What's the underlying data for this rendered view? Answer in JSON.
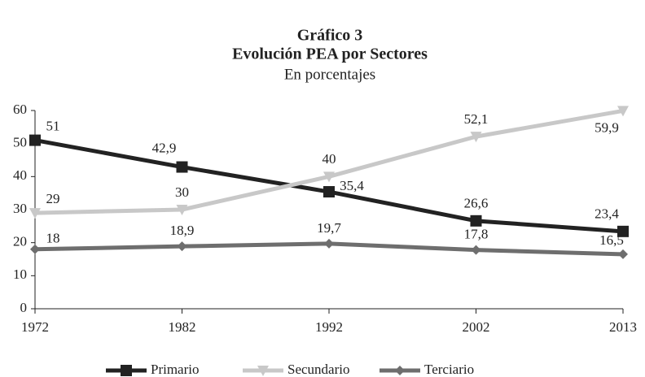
{
  "chart_data": {
    "type": "line",
    "title": "Gráfico 3",
    "subtitle": "Evolución PEA por Sectores",
    "y_label": "En porcentajes",
    "categories": [
      "1972",
      "1982",
      "1992",
      "2002",
      "2013"
    ],
    "series": [
      {
        "name": "Primario",
        "color": "#222222",
        "marker": "square",
        "values": [
          51,
          42.9,
          35.4,
          26.6,
          23.4
        ],
        "value_labels": [
          "51",
          "42,9",
          "35,4",
          "26,6",
          "23,4"
        ]
      },
      {
        "name": "Secundario",
        "color": "#c8c8c8",
        "marker": "triangle-down",
        "values": [
          29,
          30,
          40,
          52.1,
          59.9
        ],
        "value_labels": [
          "29",
          "30",
          "40",
          "52,1",
          "59,9"
        ]
      },
      {
        "name": "Terciario",
        "color": "#6e6e6e",
        "marker": "diamond",
        "values": [
          18,
          18.9,
          19.7,
          17.8,
          16.5
        ],
        "value_labels": [
          "18",
          "18,9",
          "19,7",
          "17,8",
          "16,5"
        ]
      }
    ],
    "ylim": [
      0,
      60
    ],
    "yticks": [
      0,
      10,
      20,
      30,
      40,
      50,
      60
    ],
    "grid": false,
    "legend": "bottom"
  }
}
